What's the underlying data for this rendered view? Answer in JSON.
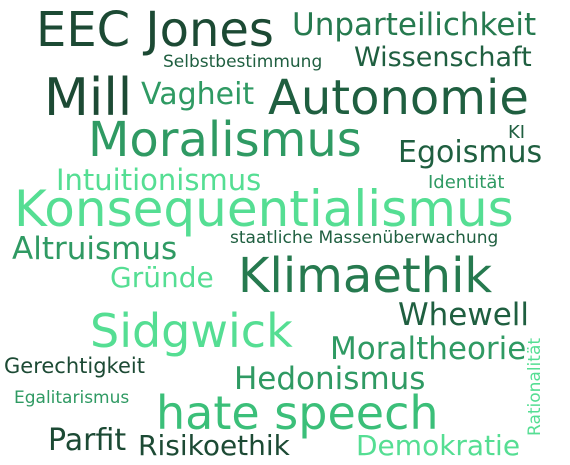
{
  "colors": {
    "dark_green": "#1c4a34",
    "mid_green": "#267a4f",
    "green": "#2f9a63",
    "light_green": "#3bbf79",
    "mint": "#55de93"
  },
  "words": [
    {
      "text": "EEC Jones",
      "color": "#1c4a34"
    },
    {
      "text": "Unparteilichkeit",
      "color": "#267a4f"
    },
    {
      "text": "Selbstbestimmung",
      "color": "#1f5f40"
    },
    {
      "text": "Wissenschaft",
      "color": "#1f5f40"
    },
    {
      "text": "Mill",
      "color": "#1c4a34"
    },
    {
      "text": "Vagheit",
      "color": "#2f9a63"
    },
    {
      "text": "Autonomie",
      "color": "#1f5f40"
    },
    {
      "text": "Moralismus",
      "color": "#2f9a63"
    },
    {
      "text": "KI",
      "color": "#1f5f40"
    },
    {
      "text": "Egoismus",
      "color": "#1f5f40"
    },
    {
      "text": "Intuitionismus",
      "color": "#55de93"
    },
    {
      "text": "Identität",
      "color": "#2f9a63"
    },
    {
      "text": "Konsequentialismus",
      "color": "#55de93"
    },
    {
      "text": "Altruismus",
      "color": "#2f9a63"
    },
    {
      "text": "staatliche Massenüberwachung",
      "color": "#1f5f40"
    },
    {
      "text": "Gründe",
      "color": "#55de93"
    },
    {
      "text": "Klimaethik",
      "color": "#267a4f"
    },
    {
      "text": "Whewell",
      "color": "#1f5f40"
    },
    {
      "text": "Sidgwick",
      "color": "#55de93"
    },
    {
      "text": "Rationalität",
      "color": "#55de93"
    },
    {
      "text": "Moraltheorie",
      "color": "#2f9a63"
    },
    {
      "text": "Gerechtigkeit",
      "color": "#1c4a34"
    },
    {
      "text": "Hedonismus",
      "color": "#2f9a63"
    },
    {
      "text": "Egalitarismus",
      "color": "#2f9a63"
    },
    {
      "text": "hate speech",
      "color": "#3bbf79"
    },
    {
      "text": "Parfit",
      "color": "#1c4a34"
    },
    {
      "text": "Risikoethik",
      "color": "#1c4a34"
    },
    {
      "text": "Demokratie",
      "color": "#55de93"
    }
  ]
}
